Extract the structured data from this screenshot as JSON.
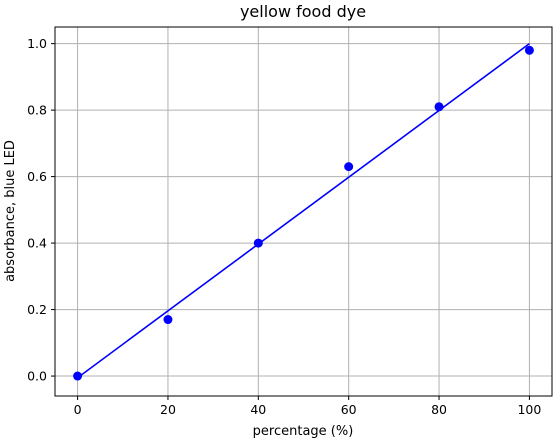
{
  "chart_data": {
    "type": "scatter",
    "title": "yellow food dye",
    "xlabel": "percentage (%)",
    "ylabel": "absorbance, blue LED",
    "xlim": [
      -5,
      105
    ],
    "ylim": [
      -0.06,
      1.05
    ],
    "x_ticks": [
      0,
      20,
      40,
      60,
      80,
      100
    ],
    "y_ticks": [
      0.0,
      0.2,
      0.4,
      0.6,
      0.8,
      1.0
    ],
    "y_tick_labels": [
      "0.0",
      "0.2",
      "0.4",
      "0.6",
      "0.8",
      "1.0"
    ],
    "grid": true,
    "color": "#0000ff",
    "points": [
      {
        "x": 0,
        "y": 0.0
      },
      {
        "x": 20,
        "y": 0.17
      },
      {
        "x": 40,
        "y": 0.4
      },
      {
        "x": 60,
        "y": 0.63
      },
      {
        "x": 80,
        "y": 0.81
      },
      {
        "x": 100,
        "y": 0.98
      }
    ],
    "fit_line": [
      {
        "x": 0,
        "y": -0.005
      },
      {
        "x": 100,
        "y": 1.0
      }
    ]
  }
}
